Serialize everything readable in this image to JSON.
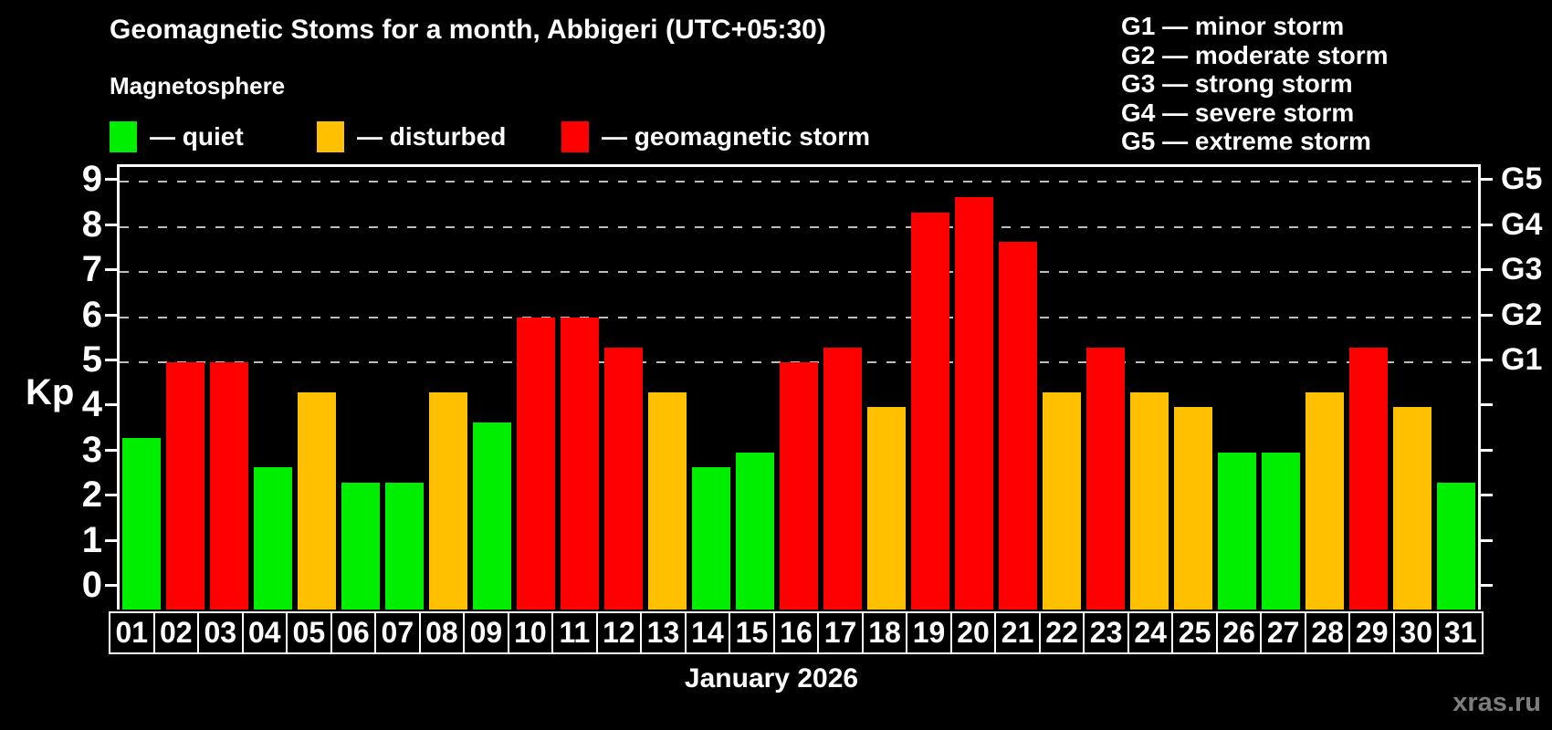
{
  "title": "Geomagnetic Stoms for a month, Abbigeri (UTC+05:30)",
  "subtitle": "Magnetosphere",
  "legend": [
    {
      "key": "quiet",
      "label": "— quiet",
      "color": "#00ee00",
      "x": 120
    },
    {
      "key": "disturbed",
      "label": "— disturbed",
      "color": "#ffc000",
      "x": 347
    },
    {
      "key": "storm",
      "label": "— geomagnetic storm",
      "color": "#ff0000",
      "x": 615
    }
  ],
  "g_legend": [
    "G1 — minor storm",
    "G2 — moderate storm",
    "G3 — strong storm",
    "G4 — severe storm",
    "G5 — extreme storm"
  ],
  "axis": {
    "y_label": "Kp",
    "y_ticks": [
      0,
      1,
      2,
      3,
      4,
      5,
      6,
      7,
      8,
      9
    ],
    "g_labels": [
      {
        "value": 5,
        "label": "G1"
      },
      {
        "value": 6,
        "label": "G2"
      },
      {
        "value": 7,
        "label": "G3"
      },
      {
        "value": 8,
        "label": "G4"
      },
      {
        "value": 9,
        "label": "G5"
      }
    ]
  },
  "x_label": "January 2026",
  "watermark": "xras.ru",
  "chart_data": {
    "type": "bar",
    "title": "Geomagnetic Stoms for a month, Abbigeri (UTC+05:30)",
    "xlabel": "January 2026",
    "ylabel": "Kp",
    "ylim": [
      0,
      9
    ],
    "grid": true,
    "gridlines": [
      5,
      6,
      7,
      8,
      9
    ],
    "legend_position": "top-left",
    "categories": [
      "01",
      "02",
      "03",
      "04",
      "05",
      "06",
      "07",
      "08",
      "09",
      "10",
      "11",
      "12",
      "13",
      "14",
      "15",
      "16",
      "17",
      "18",
      "19",
      "20",
      "21",
      "22",
      "23",
      "24",
      "25",
      "26",
      "27",
      "28",
      "29",
      "30",
      "31"
    ],
    "values": [
      3.33,
      5.0,
      5.0,
      2.67,
      4.33,
      2.33,
      2.33,
      4.33,
      3.67,
      6.0,
      6.0,
      5.33,
      4.33,
      2.67,
      3.0,
      5.0,
      5.33,
      4.0,
      8.33,
      8.67,
      7.67,
      4.33,
      5.33,
      4.33,
      4.0,
      3.0,
      3.0,
      4.33,
      5.33,
      4.0,
      2.33
    ],
    "statuses": [
      "quiet",
      "storm",
      "storm",
      "quiet",
      "disturbed",
      "quiet",
      "quiet",
      "disturbed",
      "quiet",
      "storm",
      "storm",
      "storm",
      "disturbed",
      "quiet",
      "quiet",
      "storm",
      "storm",
      "disturbed",
      "storm",
      "storm",
      "storm",
      "disturbed",
      "storm",
      "disturbed",
      "disturbed",
      "quiet",
      "quiet",
      "disturbed",
      "storm",
      "disturbed",
      "quiet"
    ],
    "colors": {
      "quiet": "#00ee00",
      "disturbed": "#ffc000",
      "storm": "#ff0000"
    }
  }
}
